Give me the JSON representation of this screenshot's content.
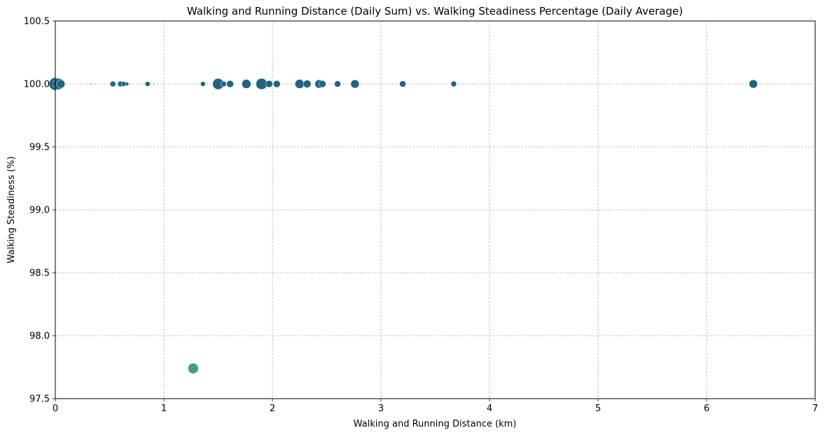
{
  "chart_data": {
    "type": "scatter",
    "title": "Walking and Running Distance (Daily Sum) vs. Walking Steadiness Percentage (Daily Average)",
    "xlabel": "Walking and Running Distance (km)",
    "ylabel": "Walking Steadiness (%)",
    "xlim": [
      0,
      7
    ],
    "ylim": [
      97.5,
      100.5
    ],
    "xticks": [
      0,
      1,
      2,
      3,
      4,
      5,
      6,
      7
    ],
    "yticks": [
      97.5,
      98.0,
      98.5,
      99.0,
      99.5,
      100.0,
      100.5
    ],
    "xtick_labels": [
      "0",
      "1",
      "2",
      "3",
      "4",
      "5",
      "6",
      "7"
    ],
    "ytick_labels": [
      "97.5",
      "98.0",
      "98.5",
      "99.0",
      "99.5",
      "100.0",
      "100.5"
    ],
    "grid": true,
    "colors": {
      "high": "#1f6482",
      "low": "#4a9a8a"
    },
    "points": [
      {
        "x": 0.0,
        "y": 100.0,
        "size": 9
      },
      {
        "x": 0.03,
        "y": 100.0,
        "size": 8
      },
      {
        "x": 0.05,
        "y": 100.0,
        "size": 6
      },
      {
        "x": 0.33,
        "y": 100.0,
        "size": 1
      },
      {
        "x": 0.53,
        "y": 100.0,
        "size": 4
      },
      {
        "x": 0.6,
        "y": 100.0,
        "size": 4
      },
      {
        "x": 0.63,
        "y": 100.0,
        "size": 3.5
      },
      {
        "x": 0.66,
        "y": 100.0,
        "size": 2.5
      },
      {
        "x": 0.85,
        "y": 100.0,
        "size": 3.5
      },
      {
        "x": 0.91,
        "y": 100.0,
        "size": 1
      },
      {
        "x": 1.36,
        "y": 100.0,
        "size": 3.5
      },
      {
        "x": 1.5,
        "y": 100.0,
        "size": 8
      },
      {
        "x": 1.55,
        "y": 100.0,
        "size": 4
      },
      {
        "x": 1.61,
        "y": 100.0,
        "size": 5
      },
      {
        "x": 1.76,
        "y": 100.0,
        "size": 6.5
      },
      {
        "x": 1.9,
        "y": 100.0,
        "size": 8
      },
      {
        "x": 1.97,
        "y": 100.0,
        "size": 5
      },
      {
        "x": 2.04,
        "y": 100.0,
        "size": 5
      },
      {
        "x": 2.25,
        "y": 100.0,
        "size": 6.5
      },
      {
        "x": 2.32,
        "y": 100.0,
        "size": 5.5
      },
      {
        "x": 2.43,
        "y": 100.0,
        "size": 6
      },
      {
        "x": 2.46,
        "y": 100.0,
        "size": 5
      },
      {
        "x": 2.6,
        "y": 100.0,
        "size": 4.5
      },
      {
        "x": 2.76,
        "y": 100.0,
        "size": 6
      },
      {
        "x": 3.2,
        "y": 100.0,
        "size": 4.5
      },
      {
        "x": 3.67,
        "y": 100.0,
        "size": 4
      },
      {
        "x": 6.43,
        "y": 100.0,
        "size": 6
      },
      {
        "x": 1.27,
        "y": 97.74,
        "size": 7.5
      }
    ]
  }
}
